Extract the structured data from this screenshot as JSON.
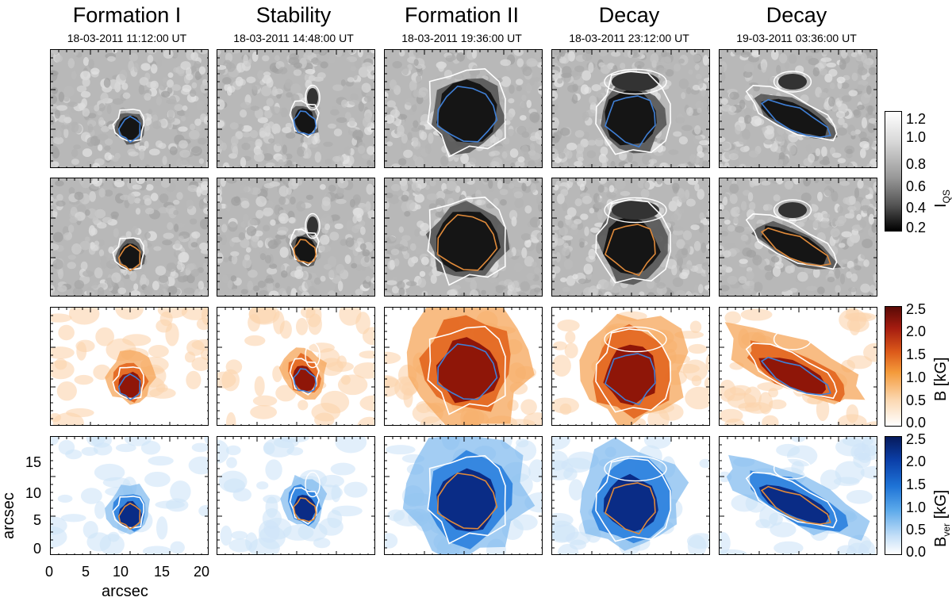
{
  "columns": [
    {
      "title": "Formation I",
      "time": "18-03-2011 11:12:00 UT"
    },
    {
      "title": "Stability",
      "time": "18-03-2011 14:48:00 UT"
    },
    {
      "title": "Formation II",
      "time": "18-03-2011 19:36:00 UT"
    },
    {
      "title": "Decay",
      "time": "18-03-2011 23:12:00 UT"
    },
    {
      "title": "Decay",
      "time": "19-03-2011 03:36:00 UT"
    }
  ],
  "rows": [
    {
      "kind": "intensity",
      "contour": "blue"
    },
    {
      "kind": "intensity",
      "contour": "orange"
    },
    {
      "kind": "field-total",
      "contour": "blue"
    },
    {
      "kind": "field-vertical",
      "contour": "orange"
    }
  ],
  "colorbars": [
    {
      "label_main": "I",
      "label_sub": "QS",
      "ticks": [
        "1.2",
        "1.0",
        "0.8",
        "0.6",
        "0.4",
        "0.2"
      ]
    },
    {
      "label_main": "B [kG]",
      "ticks": [
        "2.5",
        "2.0",
        "1.5",
        "1.0",
        "0.5",
        "0.0"
      ]
    },
    {
      "label_main": "B",
      "label_sub": "ver",
      "label_tail": " [kG]",
      "ticks": [
        "2.5",
        "2.0",
        "1.5",
        "1.0",
        "0.5",
        "0.0"
      ]
    }
  ],
  "axes": {
    "xlabel": "arcsec",
    "ylabel": "arcsec",
    "xticks": [
      "0",
      "5",
      "10",
      "15",
      "20"
    ],
    "yticks": [
      "15",
      "10",
      "5",
      "0"
    ]
  },
  "colors": {
    "blue_contour": "#3f7fd6",
    "orange_contour": "#e08a3a",
    "white_contour": "#ffffff"
  }
}
